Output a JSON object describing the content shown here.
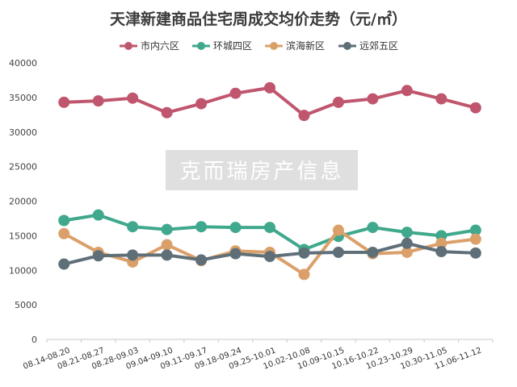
{
  "chart_data": {
    "type": "line",
    "title": "天津新建商品住宅周成交均价走势（元/㎡）",
    "xlabel": "",
    "ylabel": "",
    "ylim": [
      0,
      40000
    ],
    "yticks": [
      "0",
      "5000",
      "10000",
      "15000",
      "20000",
      "25000",
      "30000",
      "35000",
      "40000"
    ],
    "grid": false,
    "legend_position": "top",
    "categories": [
      "08.14-08.20",
      "08.21-08.27",
      "08.28-09.03",
      "09.04-09.10",
      "09.11-09.17",
      "09.18-09.24",
      "09.25-10.01",
      "10.02-10.08",
      "10.09-10.15",
      "10.16-10.22",
      "10.23-10.29",
      "10.30-11.05",
      "11.06-11.12"
    ],
    "series": [
      {
        "name": "市内六区",
        "color": "#c0566e",
        "values": [
          34300,
          34500,
          34900,
          32800,
          34100,
          35600,
          36400,
          32400,
          34300,
          34800,
          36000,
          34800,
          33500
        ]
      },
      {
        "name": "环城四区",
        "color": "#3fa88d",
        "values": [
          17200,
          18000,
          16300,
          15900,
          16300,
          16200,
          16200,
          13000,
          14900,
          16200,
          15500,
          15000,
          15800
        ]
      },
      {
        "name": "滨海新区",
        "color": "#dba06a",
        "values": [
          15300,
          12600,
          11200,
          13700,
          11400,
          12800,
          12600,
          9400,
          15800,
          12400,
          12600,
          13900,
          14500
        ]
      },
      {
        "name": "远郊五区",
        "color": "#5f6f78",
        "values": [
          10900,
          12100,
          12200,
          12200,
          11500,
          12400,
          12000,
          12500,
          12600,
          12600,
          13900,
          12700,
          12500
        ]
      }
    ]
  },
  "watermark": "克而瑞房产信息"
}
